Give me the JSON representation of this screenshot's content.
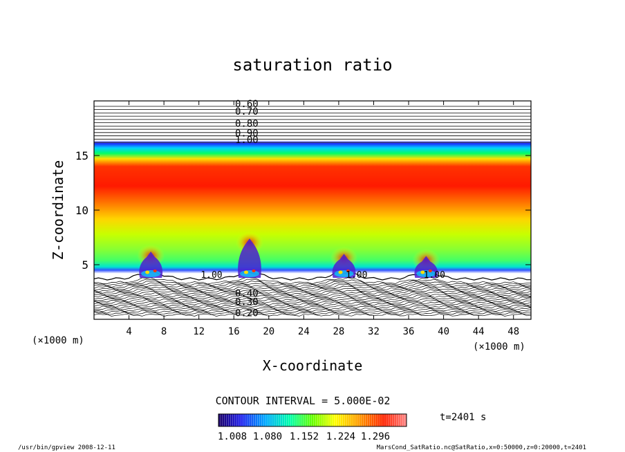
{
  "chart_data": {
    "type": "heatmap",
    "title": "saturation ratio",
    "xlabel": "X-coordinate",
    "ylabel": "Z-coordinate",
    "x_unit_left": "(×1000 m)",
    "x_unit_right": "(×1000 m)",
    "xlim": [
      0,
      50
    ],
    "ylim": [
      0,
      20
    ],
    "x_ticks": [
      4,
      8,
      12,
      16,
      20,
      24,
      28,
      32,
      36,
      40,
      44,
      48
    ],
    "y_ticks": [
      5,
      10,
      15
    ],
    "contour_interval_label": "CONTOUR INTERVAL = 5.000E-02",
    "contour_labels_top": [
      "0.60",
      "0.70",
      "0.80",
      "0.90",
      "1.00"
    ],
    "contour_labels_bottom": [
      "0.40",
      "0.30",
      "0.20"
    ],
    "contour_labels_inline": [
      "1.00",
      "1.00",
      "1.00"
    ],
    "colorbar": {
      "ticks": [
        "1.008",
        "1.080",
        "1.152",
        "1.224",
        "1.296"
      ],
      "vmin": 1.008,
      "vmax": 1.296
    },
    "time_label": "t=2401 s",
    "features": {
      "plume_centers_x": [
        6.5,
        17.8,
        28.6,
        38.0
      ],
      "plume_tops_z": [
        6.2,
        7.4,
        6.0,
        5.8
      ],
      "high_saturation_band_z": [
        12.0,
        15.0
      ],
      "saturation_top_z": 16.0
    }
  },
  "footer": {
    "left": "/usr/bin/gpview   2008-12-11",
    "right": "MarsCond_SatRatio.nc@SatRatio,x=0:50000,z=0:20000,t=2401"
  }
}
